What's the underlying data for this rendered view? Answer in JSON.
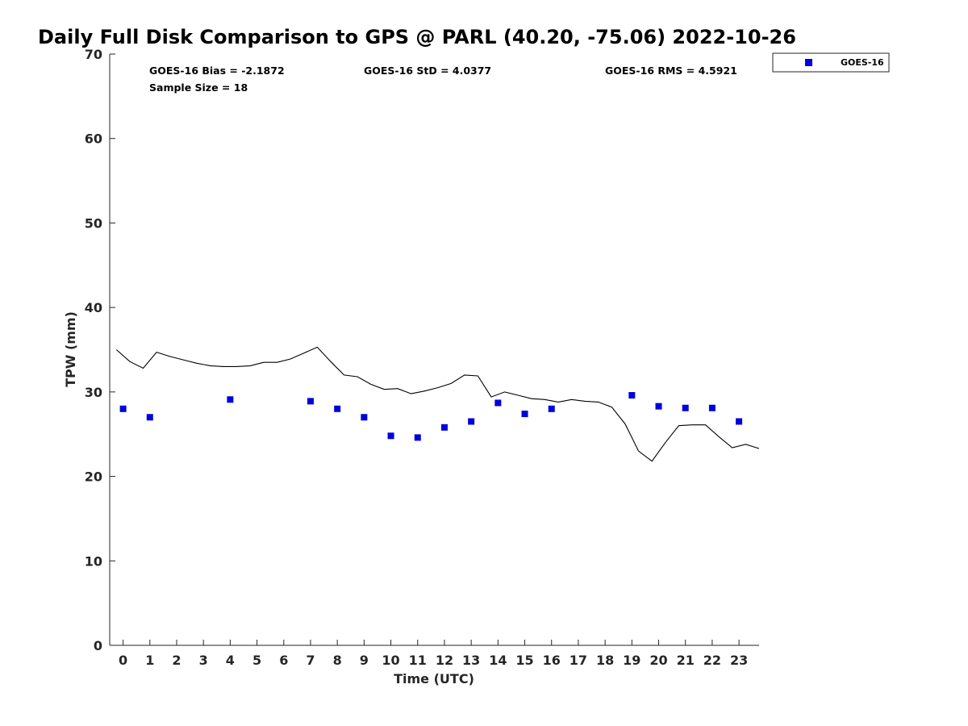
{
  "chart_data": {
    "type": "scatter",
    "title": "Daily Full Disk Comparison to GPS @ PARL (40.20, -75.06) 2022-10-26",
    "xlabel": "Time (UTC)",
    "ylabel": "TPW (mm)",
    "xlim": [
      -0.5,
      23.75
    ],
    "ylim": [
      0,
      70
    ],
    "xticks": [
      0,
      1,
      2,
      3,
      4,
      5,
      6,
      7,
      8,
      9,
      10,
      11,
      12,
      13,
      14,
      15,
      16,
      17,
      18,
      19,
      20,
      21,
      22,
      23
    ],
    "yticks": [
      0,
      10,
      20,
      30,
      40,
      50,
      60,
      70
    ],
    "grid": false,
    "legend": {
      "placement": "top-right-outside",
      "entries": [
        "GOES-16"
      ]
    },
    "stats": {
      "bias": "GOES-16 Bias = -2.1872",
      "std": "GOES-16 StD = 4.0377",
      "rms": "GOES-16 RMS = 4.5921",
      "sample": "Sample Size = 18"
    },
    "series": [
      {
        "name": "GOES-16",
        "kind": "scatter",
        "color": "#0000dd",
        "x": [
          0,
          1,
          4,
          7,
          8,
          9,
          10,
          11,
          12,
          13,
          14,
          15,
          16,
          19,
          20,
          21,
          22,
          23
        ],
        "y": [
          28.0,
          27.0,
          29.1,
          28.9,
          28.0,
          27.0,
          24.8,
          24.6,
          25.8,
          26.5,
          28.7,
          27.4,
          28.0,
          29.6,
          28.3,
          28.1,
          28.1,
          26.5
        ]
      },
      {
        "kind": "line",
        "color": "#000000",
        "x": [
          -0.25,
          0.25,
          0.75,
          1.25,
          1.75,
          2.25,
          2.75,
          3.25,
          3.75,
          4.25,
          4.75,
          5.25,
          5.75,
          6.25,
          6.75,
          7.25,
          7.75,
          8.25,
          8.75,
          9.25,
          9.75,
          10.25,
          10.75,
          11.25,
          11.75,
          12.25,
          12.75,
          13.25,
          13.75,
          14.25,
          14.75,
          15.25,
          15.75,
          16.25,
          16.75,
          17.25,
          17.75,
          18.25,
          18.75,
          19.25,
          19.75,
          20.25,
          20.75,
          21.25,
          21.75,
          22.25,
          22.75,
          23.25,
          23.75
        ],
        "y": [
          35.0,
          33.6,
          32.8,
          34.7,
          34.2,
          33.8,
          33.4,
          33.1,
          33.0,
          33.0,
          33.1,
          33.5,
          33.5,
          33.9,
          34.6,
          35.3,
          33.6,
          32.0,
          31.8,
          30.9,
          30.3,
          30.4,
          29.8,
          30.1,
          30.5,
          31.0,
          32.0,
          31.9,
          29.4,
          30.0,
          29.6,
          29.2,
          29.1,
          28.8,
          29.1,
          28.9,
          28.8,
          28.2,
          26.2,
          23.0,
          21.8,
          24.0,
          26.0,
          26.1,
          26.1,
          24.7,
          23.4,
          23.8,
          23.3
        ]
      }
    ]
  }
}
